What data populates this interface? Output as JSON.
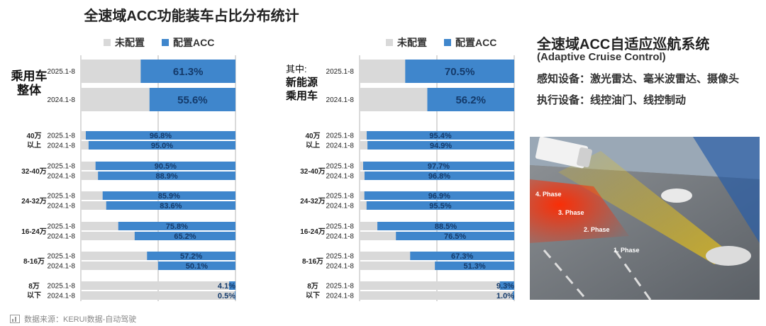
{
  "title": "全速域ACC功能装车占比分布统计",
  "legend": {
    "unequipped": "未配置",
    "equipped": "配置ACC"
  },
  "colors": {
    "equipped": "#3f86cc",
    "unequipped": "#d9d9d9",
    "grid": "#b5b5b5"
  },
  "panels": {
    "left": {
      "label_line1": "乘用车",
      "label_line2": "整体"
    },
    "right": {
      "label_line1": "其中:",
      "label_line2": "新能源",
      "label_line3": "乘用车"
    }
  },
  "info": {
    "title": "全速域ACC自适应巡航系统",
    "subtitle": "(Adaptive Cruise Control)",
    "line1": "感知设备：激光雷达、毫米波雷达、摄像头",
    "line2": "执行设备：线控油门、线控制动"
  },
  "photo": {
    "phases": [
      "4. Phase",
      "3. Phase",
      "2. Phase",
      "1. Phase"
    ],
    "icon": "acc-road-illustration"
  },
  "source": {
    "text": "数据来源：KERUI数据-自动驾驶",
    "icon": "chart-source-icon"
  },
  "chart_data": [
    {
      "type": "bar",
      "orientation": "horizontal",
      "stacked": true,
      "title": "乘用车整体",
      "xlim": [
        0,
        100
      ],
      "unit": "%",
      "series_names": [
        "配置ACC",
        "未配置"
      ],
      "overall": {
        "labels": [
          "2025.1-8",
          "2024.1-8"
        ],
        "values": [
          61.3,
          55.6
        ],
        "value_labels": [
          "61.3%",
          "55.6%"
        ]
      },
      "segments": [
        {
          "label_line1": "40万",
          "label_line2": "以上",
          "labels": [
            "2025.1-8",
            "2024.1-8"
          ],
          "values": [
            96.8,
            95.0
          ],
          "value_labels": [
            "96.8%",
            "95.0%"
          ]
        },
        {
          "label_line1": "32-40万",
          "label_line2": "",
          "labels": [
            "2025.1-8",
            "2024.1-8"
          ],
          "values": [
            90.5,
            88.9
          ],
          "value_labels": [
            "90.5%",
            "88.9%"
          ]
        },
        {
          "label_line1": "24-32万",
          "label_line2": "",
          "labels": [
            "2025.1-8",
            "2024.1-8"
          ],
          "values": [
            85.9,
            83.6
          ],
          "value_labels": [
            "85.9%",
            "83.6%"
          ]
        },
        {
          "label_line1": "16-24万",
          "label_line2": "",
          "labels": [
            "2025.1-8",
            "2024.1-8"
          ],
          "values": [
            75.8,
            65.2
          ],
          "value_labels": [
            "75.8%",
            "65.2%"
          ]
        },
        {
          "label_line1": "8-16万",
          "label_line2": "",
          "labels": [
            "2025.1-8",
            "2024.1-8"
          ],
          "values": [
            57.2,
            50.1
          ],
          "value_labels": [
            "57.2%",
            "50.1%"
          ]
        },
        {
          "label_line1": "8万",
          "label_line2": "以下",
          "labels": [
            "2025.1-8",
            "2024.1-8"
          ],
          "values": [
            4.1,
            0.5
          ],
          "value_labels": [
            "4.1%",
            "0.5%"
          ]
        }
      ]
    },
    {
      "type": "bar",
      "orientation": "horizontal",
      "stacked": true,
      "title": "其中:新能源乘用车",
      "xlim": [
        0,
        100
      ],
      "unit": "%",
      "series_names": [
        "配置ACC",
        "未配置"
      ],
      "overall": {
        "labels": [
          "2025.1-8",
          "2024.1-8"
        ],
        "values": [
          70.5,
          56.2
        ],
        "value_labels": [
          "70.5%",
          "56.2%"
        ]
      },
      "segments": [
        {
          "label_line1": "40万",
          "label_line2": "以上",
          "labels": [
            "2025.1-8",
            "2024.1-8"
          ],
          "values": [
            95.4,
            94.9
          ],
          "value_labels": [
            "95.4%",
            "94.9%"
          ]
        },
        {
          "label_line1": "32-40万",
          "label_line2": "",
          "labels": [
            "2025.1-8",
            "2024.1-8"
          ],
          "values": [
            97.7,
            96.8
          ],
          "value_labels": [
            "97.7%",
            "96.8%"
          ]
        },
        {
          "label_line1": "24-32万",
          "label_line2": "",
          "labels": [
            "2025.1-8",
            "2024.1-8"
          ],
          "values": [
            96.9,
            95.5
          ],
          "value_labels": [
            "96.9%",
            "95.5%"
          ]
        },
        {
          "label_line1": "16-24万",
          "label_line2": "",
          "labels": [
            "2025.1-8",
            "2024.1-8"
          ],
          "values": [
            88.5,
            76.5
          ],
          "value_labels": [
            "88.5%",
            "76.5%"
          ]
        },
        {
          "label_line1": "8-16万",
          "label_line2": "",
          "labels": [
            "2025.1-8",
            "2024.1-8"
          ],
          "values": [
            67.3,
            51.3
          ],
          "value_labels": [
            "67.3%",
            "51.3%"
          ]
        },
        {
          "label_line1": "8万",
          "label_line2": "以下",
          "labels": [
            "2025.1-8",
            "2024.1-8"
          ],
          "values": [
            9.3,
            1.0
          ],
          "value_labels": [
            "9.3%",
            "1.0%"
          ]
        }
      ]
    }
  ]
}
